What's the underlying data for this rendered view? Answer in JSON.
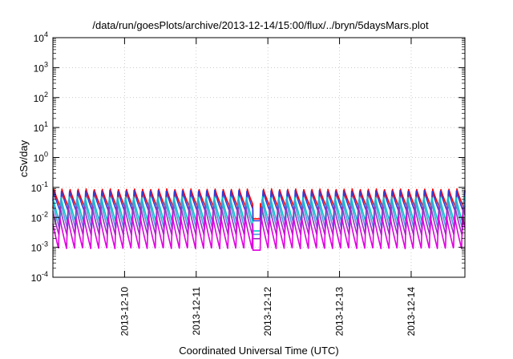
{
  "chart_data": {
    "type": "line",
    "title": "/data/run/goesPlots/archive/2013-12-14/15:00/flux/../bryn/5daysMars.plot",
    "xlabel": "Coordinated Universal Time (UTC)",
    "ylabel": "cSv/day",
    "y_scale": "log",
    "ylim": [
      0.0001,
      10000
    ],
    "y_ticks": [
      {
        "base": "10",
        "exp": "-4"
      },
      {
        "base": "10",
        "exp": "-3"
      },
      {
        "base": "10",
        "exp": "-2"
      },
      {
        "base": "10",
        "exp": "-1"
      },
      {
        "base": "10",
        "exp": "0"
      },
      {
        "base": "10",
        "exp": "1"
      },
      {
        "base": "10",
        "exp": "2"
      },
      {
        "base": "10",
        "exp": "3"
      },
      {
        "base": "10",
        "exp": "4"
      }
    ],
    "xlim": [
      "2013-12-09 00:00",
      "2013-12-14 18:00"
    ],
    "x_ticks": [
      "2013-12-10",
      "2013-12-11",
      "2013-12-12",
      "2013-12-13",
      "2013-12-14"
    ],
    "grid": true,
    "period_hours": 2.7,
    "dip_window": [
      "2013-12-11 19:00",
      "2013-12-11 21:30"
    ],
    "series": [
      {
        "color": "#ff0000",
        "peak": 0.09,
        "floor": 0.02
      },
      {
        "color": "#2f3cd8",
        "peak": 0.08,
        "floor": 0.015
      },
      {
        "color": "#00c8c8",
        "peak": 0.05,
        "floor": 0.006
      },
      {
        "color": "#4a9be0",
        "peak": 0.04,
        "floor": 0.004
      },
      {
        "color": "#9b30c0",
        "peak": 0.025,
        "floor": 0.0025
      },
      {
        "color": "#e000e0",
        "peak": 0.012,
        "floor": 0.0009
      }
    ]
  }
}
